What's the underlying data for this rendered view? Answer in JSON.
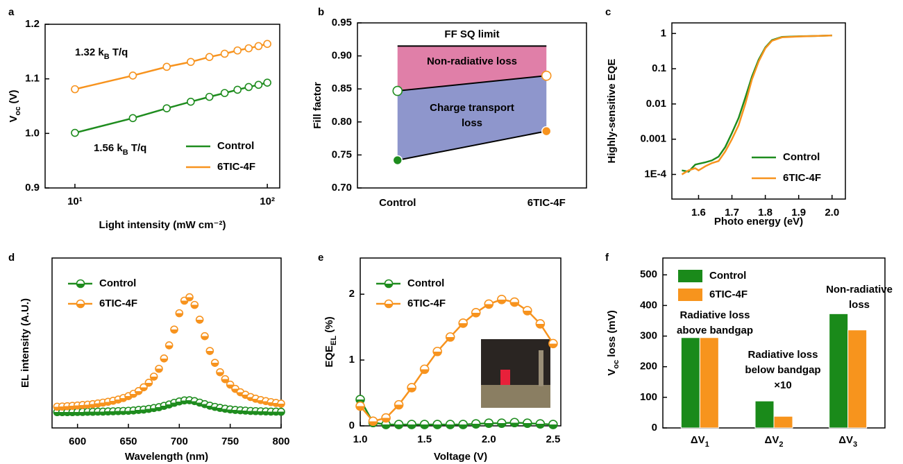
{
  "chart_data": [
    {
      "panel": "a",
      "type": "line",
      "marker": "open-circle",
      "xlog": true,
      "x": [
        10,
        20,
        30,
        40,
        50,
        60,
        70,
        80,
        90,
        100
      ],
      "series": [
        {
          "name": "Control",
          "color": "#1e8c1e",
          "values": [
            1.001,
            1.028,
            1.046,
            1.058,
            1.067,
            1.074,
            1.08,
            1.085,
            1.089,
            1.093
          ]
        },
        {
          "name": "6TIC-4F",
          "color": "#f7931e",
          "values": [
            1.081,
            1.106,
            1.122,
            1.131,
            1.14,
            1.146,
            1.152,
            1.156,
            1.16,
            1.164
          ]
        }
      ],
      "xlim": [
        7,
        116
      ],
      "xticks": [
        {
          "value": 10,
          "label": "10¹"
        },
        {
          "value": 100,
          "label": "10²"
        }
      ],
      "ylim": [
        0.9,
        1.2
      ],
      "yticks": [
        0.9,
        {
          "value": 1,
          "label": "1.0"
        },
        1.1,
        1.2
      ],
      "xlabel": "Light intensity (mW cm⁻²)",
      "ylabel": [
        "V",
        "oc",
        " (V)"
      ],
      "legend": "lower right",
      "annotations": [
        {
          "lines": [
            [
              "1.32 k",
              "B",
              " T/q"
            ]
          ],
          "color": "#f7931e"
        },
        {
          "lines": [
            [
              "1.56 k",
              "B",
              " T/q"
            ]
          ],
          "color": "#1e8c1e"
        }
      ]
    },
    {
      "panel": "b",
      "type": "loss",
      "categories": [
        "Control",
        "6TIC-4F"
      ],
      "series": [
        {
          "marker": "filled-circle",
          "values": [
            0.742,
            0.786
          ]
        },
        {
          "marker": "open-circle",
          "values": [
            0.847,
            0.87
          ]
        }
      ],
      "point_colors": [
        "#1e8c1e",
        "#f7931e"
      ],
      "line_color": "#000000",
      "sq_limit": 0.915,
      "region_colors": [
        "#8e96cc",
        "#e07fa8"
      ],
      "ylim": [
        0.7,
        0.95
      ],
      "yticks": [
        {
          "value": 0.7,
          "label": "0.70"
        },
        0.75,
        {
          "value": 0.8,
          "label": "0.80"
        },
        0.85,
        {
          "value": 0.9,
          "label": "0.90"
        },
        0.95
      ],
      "ylabel": "Fill factor",
      "annotations": [
        {
          "lines": [
            "FF SQ limit"
          ],
          "color": "#000000"
        },
        {
          "lines": [
            "Non-radiative loss"
          ],
          "color": "#ffffff"
        },
        {
          "lines": [
            "Charge transport",
            "loss"
          ],
          "color": "#111111"
        }
      ]
    },
    {
      "panel": "c",
      "type": "line",
      "ylog": true,
      "x": [
        1.55,
        1.57,
        1.59,
        1.6,
        1.62,
        1.64,
        1.66,
        1.68,
        1.7,
        1.72,
        1.74,
        1.76,
        1.78,
        1.8,
        1.82,
        1.85,
        1.9,
        1.95,
        2.0
      ],
      "series": [
        {
          "name": "Control",
          "color": "#1e8c1e",
          "values": [
            0.00013,
            0.00012,
            0.00019,
            0.0002,
            0.00022,
            0.00025,
            0.00032,
            0.0006,
            0.0015,
            0.004,
            0.015,
            0.06,
            0.18,
            0.4,
            0.65,
            0.8,
            0.83,
            0.85,
            0.88
          ]
        },
        {
          "name": "6TIC-4F",
          "color": "#f7931e",
          "values": [
            0.0001,
            0.00013,
            0.00015,
            0.00013,
            0.00017,
            0.00021,
            0.00024,
            0.00045,
            0.001,
            0.0025,
            0.01,
            0.05,
            0.16,
            0.38,
            0.62,
            0.78,
            0.82,
            0.85,
            0.88
          ]
        }
      ],
      "xlim": [
        1.52,
        2.04
      ],
      "xticks": [
        1.6,
        1.7,
        1.8,
        1.9,
        {
          "value": 2,
          "label": "2.0"
        }
      ],
      "ylim": [
        2e-05,
        2
      ],
      "yticks": [
        {
          "value": 0.0001,
          "label": "1E-4"
        },
        0.001,
        0.01,
        0.1,
        1
      ],
      "xlabel": "Photo energy (eV)",
      "ylabel": "Highly-sensitive EQE",
      "legend": "lower right"
    },
    {
      "panel": "d",
      "type": "scatter",
      "marker": "half-circle",
      "x": [
        580,
        585,
        590,
        595,
        600,
        605,
        610,
        615,
        620,
        625,
        630,
        635,
        640,
        645,
        650,
        655,
        660,
        665,
        670,
        675,
        680,
        685,
        690,
        695,
        700,
        705,
        710,
        715,
        720,
        725,
        730,
        735,
        740,
        745,
        750,
        755,
        760,
        765,
        770,
        775,
        780,
        785,
        790,
        795,
        800
      ],
      "series": [
        {
          "name": "Control",
          "color": "#1e8c1e",
          "values": [
            0.093,
            0.093,
            0.093,
            0.093,
            0.094,
            0.094,
            0.095,
            0.095,
            0.096,
            0.096,
            0.097,
            0.098,
            0.099,
            0.1,
            0.101,
            0.103,
            0.106,
            0.108,
            0.112,
            0.117,
            0.122,
            0.13,
            0.138,
            0.148,
            0.156,
            0.162,
            0.163,
            0.158,
            0.149,
            0.14,
            0.131,
            0.124,
            0.118,
            0.113,
            0.109,
            0.106,
            0.104,
            0.102,
            0.1,
            0.099,
            0.098,
            0.097,
            0.096,
            0.096,
            0.095
          ]
        },
        {
          "name": "6TIC-4F",
          "color": "#f7931e",
          "values": [
            0.125,
            0.126,
            0.128,
            0.13,
            0.132,
            0.135,
            0.137,
            0.14,
            0.144,
            0.149,
            0.154,
            0.16,
            0.167,
            0.176,
            0.187,
            0.201,
            0.217,
            0.239,
            0.266,
            0.302,
            0.348,
            0.409,
            0.486,
            0.579,
            0.675,
            0.749,
            0.769,
            0.724,
            0.637,
            0.54,
            0.453,
            0.383,
            0.328,
            0.287,
            0.255,
            0.23,
            0.21,
            0.195,
            0.182,
            0.172,
            0.164,
            0.158,
            0.152,
            0.147,
            0.143
          ]
        }
      ],
      "xlim": [
        575,
        800
      ],
      "xticks": [
        600,
        650,
        700,
        750,
        800
      ],
      "ylim": [
        0,
        1
      ],
      "xlabel": "Wavelength (nm)",
      "ylabel": "EL intensity (A.U.)",
      "legend": "upper left"
    },
    {
      "panel": "e",
      "type": "line",
      "marker": "half-circle",
      "x": [
        1.0,
        1.1,
        1.2,
        1.3,
        1.4,
        1.5,
        1.6,
        1.7,
        1.8,
        1.9,
        2.0,
        2.1,
        2.2,
        2.3,
        2.4,
        2.5
      ],
      "series": [
        {
          "name": "Control",
          "color": "#1e8c1e",
          "values": [
            0.4,
            0.05,
            0.02,
            0.02,
            0.02,
            0.02,
            0.02,
            0.02,
            0.02,
            0.03,
            0.04,
            0.04,
            0.05,
            0.04,
            0.03,
            0.02
          ]
        },
        {
          "name": "6TIC-4F",
          "color": "#f7931e",
          "values": [
            0.3,
            0.07,
            0.12,
            0.32,
            0.58,
            0.86,
            1.13,
            1.35,
            1.56,
            1.72,
            1.85,
            1.92,
            1.88,
            1.75,
            1.55,
            1.25
          ]
        }
      ],
      "xlim": [
        1.0,
        2.56
      ],
      "xticks": [
        {
          "value": 1,
          "label": "1.0"
        },
        1.5,
        {
          "value": 2,
          "label": "2.0"
        },
        2.5
      ],
      "ylim": [
        0,
        2.55
      ],
      "yticks": [
        0,
        1,
        2
      ],
      "xlabel": "Voltage (V)",
      "ylabel": [
        "EQE",
        "EL",
        " (%)"
      ],
      "legend": "upper left"
    },
    {
      "panel": "f",
      "type": "bar",
      "categories": [
        [
          "ΔV",
          "1"
        ],
        [
          "ΔV",
          "2"
        ],
        [
          "ΔV",
          "3"
        ]
      ],
      "series": [
        {
          "name": "Control",
          "color": "#1a8a1a",
          "values": [
            295,
            88,
            373
          ]
        },
        {
          "name": "6TIC-4F",
          "color": "#f7941d",
          "values": [
            295,
            38,
            320
          ]
        }
      ],
      "ylim": [
        0,
        555
      ],
      "yticks": [
        0,
        100,
        200,
        300,
        400,
        500
      ],
      "ylabel": [
        "V",
        "oc",
        " loss (mV)"
      ],
      "legend": "upper left",
      "annotations": [
        {
          "lines": [
            "Radiative loss",
            "above bandgap"
          ],
          "color": "#000000"
        },
        {
          "lines": [
            "Radiative loss",
            "below bandgap",
            "×10"
          ],
          "color": "#000000"
        },
        {
          "lines": [
            "Non-radiative",
            "loss"
          ],
          "color": "#000000"
        }
      ]
    }
  ]
}
